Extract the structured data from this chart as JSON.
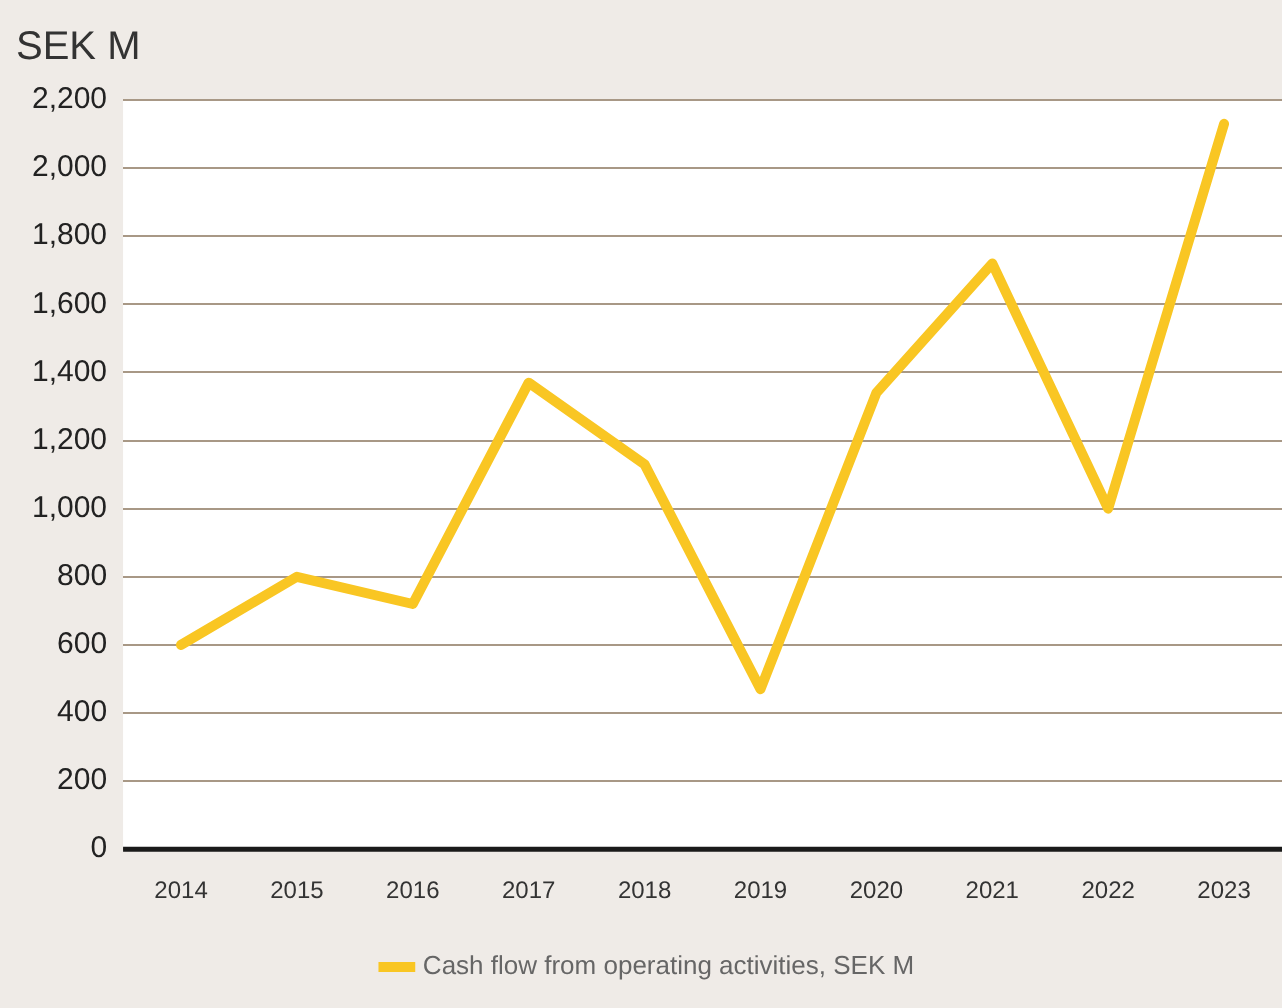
{
  "chart_data": {
    "type": "line",
    "title": "SEK M",
    "categories": [
      "2014",
      "2015",
      "2016",
      "2017",
      "2018",
      "2019",
      "2020",
      "2021",
      "2022",
      "2023"
    ],
    "series": [
      {
        "name": "Cash flow from operating activities, SEK M",
        "color": "#f9c623",
        "values": [
          600,
          800,
          720,
          1370,
          1130,
          470,
          1340,
          1720,
          1000,
          2130
        ]
      }
    ],
    "ylim": [
      0,
      2200
    ],
    "yticks": [
      {
        "value": 0,
        "label": "0"
      },
      {
        "value": 200,
        "label": "200"
      },
      {
        "value": 400,
        "label": "400"
      },
      {
        "value": 600,
        "label": "600"
      },
      {
        "value": 800,
        "label": "800"
      },
      {
        "value": 1000,
        "label": "1,000"
      },
      {
        "value": 1200,
        "label": "1,200"
      },
      {
        "value": 1400,
        "label": "1,400"
      },
      {
        "value": 1600,
        "label": "1,600"
      },
      {
        "value": 1800,
        "label": "1,800"
      },
      {
        "value": 2000,
        "label": "2,000"
      },
      {
        "value": 2200,
        "label": "2,200"
      }
    ],
    "grid": "y",
    "legend": "bottom",
    "marker": "none",
    "line_style": "solid"
  }
}
